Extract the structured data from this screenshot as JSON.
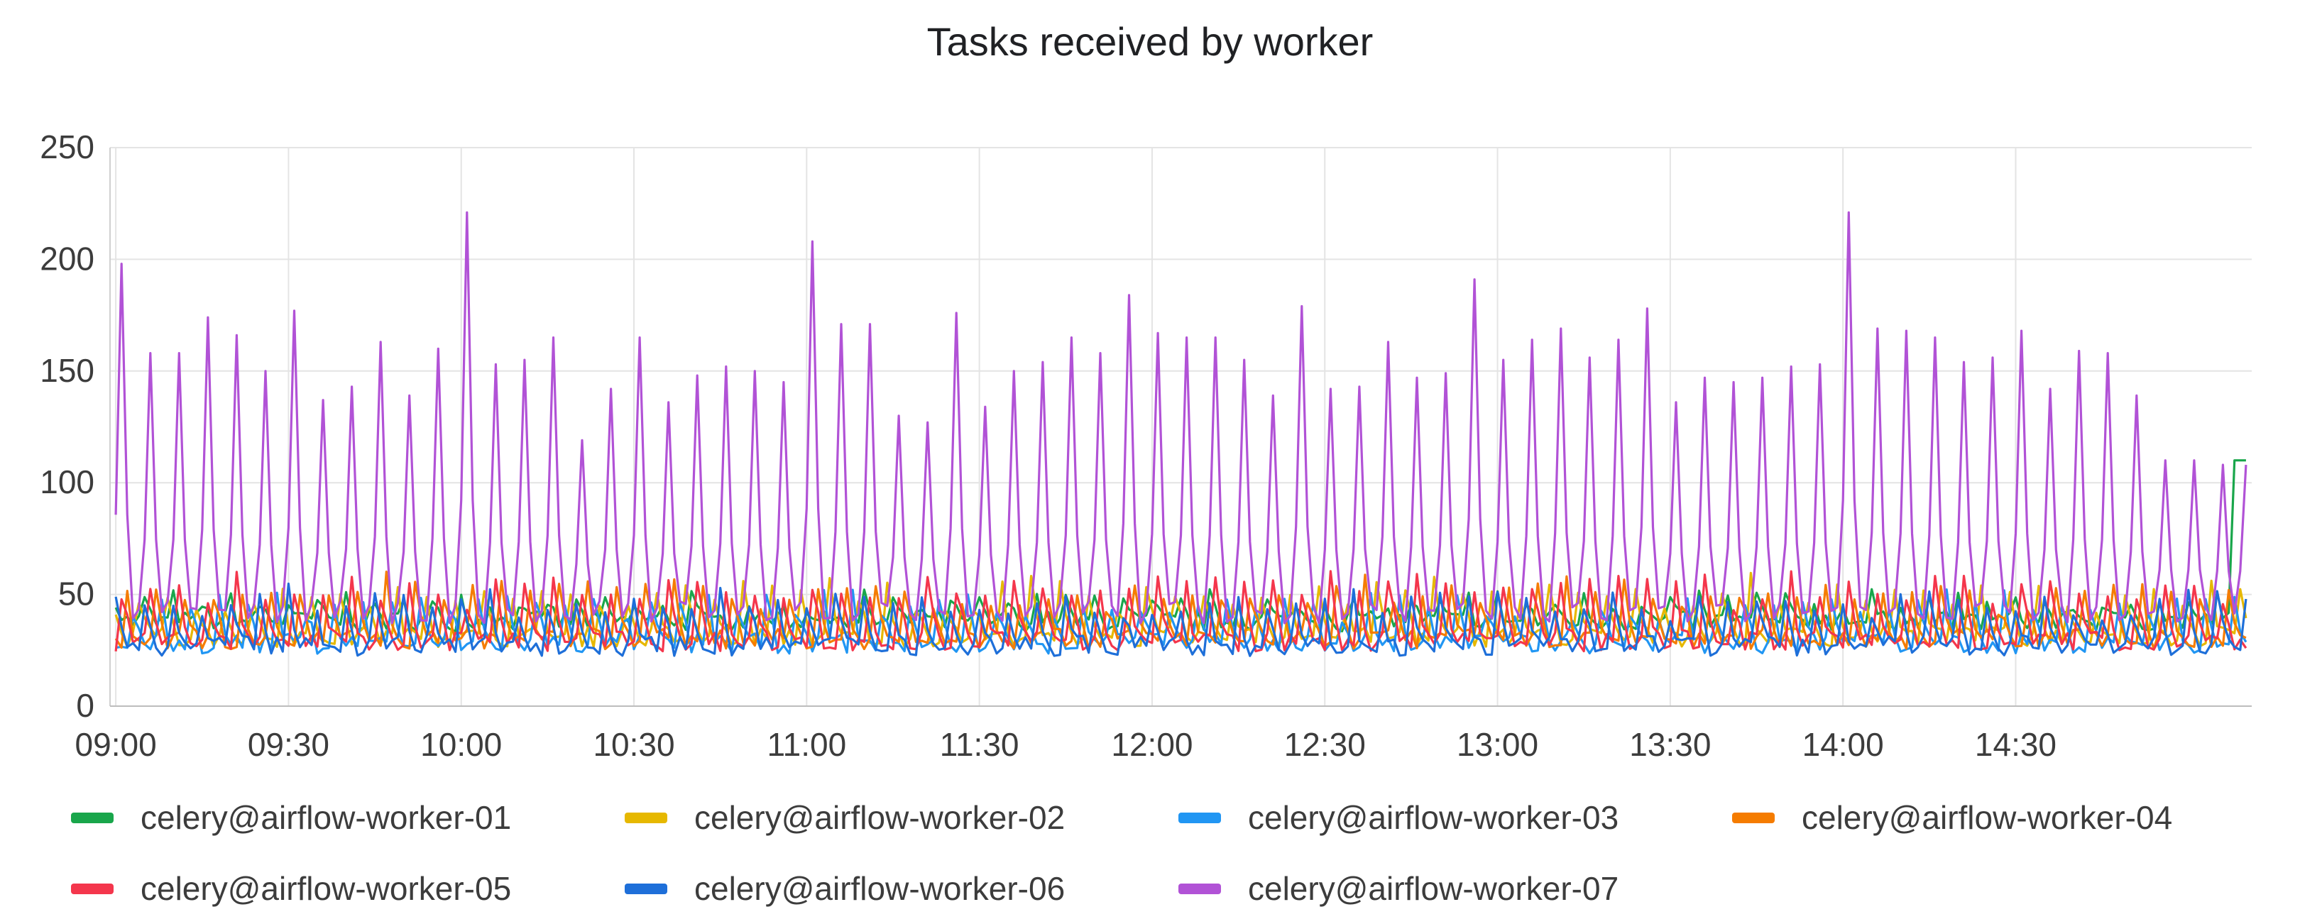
{
  "chart_data": {
    "type": "line",
    "title": "Tasks received by worker",
    "xlabel": "",
    "ylabel": "",
    "x_ticks": [
      "09:00",
      "09:30",
      "10:00",
      "10:30",
      "11:00",
      "11:30",
      "12:00",
      "12:30",
      "13:00",
      "13:30",
      "14:00",
      "14:30"
    ],
    "xlim": [
      "08:59",
      "15:11"
    ],
    "y_ticks": [
      0,
      50,
      100,
      150,
      200,
      250
    ],
    "ylim": [
      0,
      250
    ],
    "grid": true,
    "legend_position": "bottom",
    "sampling_note_visible": false,
    "series": [
      {
        "name": "celery@airflow-worker-01",
        "color": "#19a64b",
        "baseline": 38,
        "amplitude": 10
      },
      {
        "name": "celery@airflow-worker-02",
        "color": "#e6b800",
        "baseline": 31,
        "amplitude": 22
      },
      {
        "name": "celery@airflow-worker-03",
        "color": "#2196f3",
        "baseline": 28,
        "amplitude": 20
      },
      {
        "name": "celery@airflow-worker-04",
        "color": "#f57c00",
        "baseline": 30,
        "amplitude": 24
      },
      {
        "name": "celery@airflow-worker-05",
        "color": "#f4364c",
        "baseline": 29,
        "amplitude": 28
      },
      {
        "name": "celery@airflow-worker-06",
        "color": "#1e6fd9",
        "baseline": 27,
        "amplitude": 22
      },
      {
        "name": "celery@airflow-worker-07",
        "color": "#b152d6",
        "baseline": 42,
        "spike_times": [
          "09:01",
          "09:06",
          "09:11",
          "09:16",
          "09:21",
          "09:26",
          "09:31",
          "09:36",
          "09:41",
          "09:46",
          "09:51",
          "09:56",
          "10:01",
          "10:06",
          "10:11",
          "10:16",
          "10:21",
          "10:26",
          "10:31",
          "10:36",
          "10:41",
          "10:46",
          "10:51",
          "10:56",
          "11:01",
          "11:06",
          "11:11",
          "11:16",
          "11:21",
          "11:26",
          "11:31",
          "11:36",
          "11:41",
          "11:46",
          "11:51",
          "11:56",
          "12:01",
          "12:06",
          "12:11",
          "12:16",
          "12:21",
          "12:26",
          "12:31",
          "12:36",
          "12:41",
          "12:46",
          "12:51",
          "12:56",
          "13:01",
          "13:06",
          "13:11",
          "13:16",
          "13:21",
          "13:26",
          "13:31",
          "13:36",
          "13:41",
          "13:46",
          "13:51",
          "13:56",
          "14:01",
          "14:06",
          "14:11",
          "14:16",
          "14:21",
          "14:26",
          "14:31",
          "14:36",
          "14:41",
          "14:46",
          "14:51",
          "14:56",
          "15:01",
          "15:06",
          "15:10"
        ],
        "spike_values": [
          198,
          158,
          158,
          174,
          166,
          150,
          177,
          137,
          143,
          163,
          139,
          160,
          221,
          153,
          155,
          165,
          119,
          142,
          165,
          136,
          148,
          152,
          150,
          145,
          208,
          171,
          171,
          130,
          127,
          176,
          134,
          150,
          154,
          165,
          158,
          184,
          167,
          165,
          165,
          155,
          139,
          179,
          142,
          143,
          163,
          147,
          149,
          191,
          155,
          164,
          169,
          156,
          164,
          178,
          136,
          147,
          145,
          147,
          152,
          153,
          221,
          169,
          168,
          165,
          154,
          156,
          168,
          142,
          159,
          158,
          139,
          110,
          110,
          108,
          108
        ]
      }
    ]
  }
}
